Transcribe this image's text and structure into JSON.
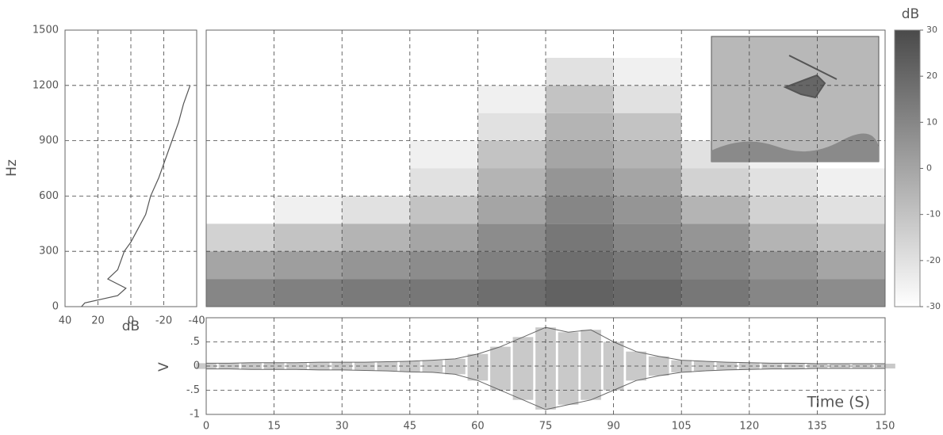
{
  "chart_data": [
    {
      "type": "line",
      "orientation": "vertical",
      "xlabel": "dB",
      "ylabel": "Hz",
      "xlim": [
        40,
        -40
      ],
      "xticks": [
        40,
        20,
        0,
        -20,
        -40
      ],
      "ylim": [
        0,
        1500
      ],
      "yticks": [
        0,
        300,
        600,
        900,
        1200,
        1500
      ],
      "grid": true,
      "color": "#555555",
      "y": [
        0,
        20,
        40,
        60,
        100,
        150,
        200,
        250,
        300,
        350,
        400,
        500,
        600,
        700,
        800,
        900,
        1000,
        1100,
        1200
      ],
      "values": [
        30,
        28,
        18,
        8,
        3,
        14,
        8,
        6,
        4,
        0,
        -3,
        -9,
        -12,
        -17,
        -21,
        -25,
        -29,
        -32,
        -36
      ]
    },
    {
      "type": "heatmap",
      "xlim": [
        0,
        150
      ],
      "xticks": [
        0,
        15,
        30,
        45,
        60,
        75,
        90,
        105,
        120,
        135,
        150
      ],
      "ylim": [
        0,
        1500
      ],
      "yticks": [
        0,
        300,
        600,
        900,
        1200,
        1500
      ],
      "grid": true,
      "xbins": [
        0,
        15,
        30,
        45,
        60,
        75,
        90,
        105,
        120,
        135,
        150
      ],
      "ybins": [
        0,
        150,
        300,
        450,
        600,
        750,
        900,
        1050,
        1200,
        1350,
        1500
      ],
      "values": [
        [
          10,
          12,
          14,
          15,
          18,
          22,
          20,
          15,
          10,
          8
        ],
        [
          0,
          2,
          5,
          8,
          12,
          18,
          15,
          10,
          5,
          0
        ],
        [
          -15,
          -10,
          -5,
          0,
          8,
          15,
          10,
          5,
          -5,
          -10
        ],
        [
          -30,
          -25,
          -20,
          -10,
          0,
          10,
          5,
          -5,
          -15,
          -20
        ],
        [
          -30,
          -30,
          -30,
          -20,
          -5,
          5,
          0,
          -15,
          -20,
          -25
        ],
        [
          -30,
          -30,
          -30,
          -25,
          -10,
          0,
          -5,
          -20,
          -25,
          -30
        ],
        [
          -30,
          -30,
          -30,
          -30,
          -20,
          -5,
          -10,
          -30,
          -30,
          -30
        ],
        [
          -30,
          -30,
          -30,
          -30,
          -25,
          -10,
          -20,
          -30,
          -30,
          -30
        ],
        [
          -30,
          -30,
          -30,
          -30,
          -30,
          -20,
          -25,
          -30,
          -30,
          -30
        ],
        [
          -30,
          -30,
          -30,
          -30,
          -30,
          -30,
          -30,
          -30,
          -30,
          -30
        ]
      ],
      "colorbar": {
        "label": "dB",
        "lim": [
          -30,
          30
        ],
        "ticks": [
          -30,
          -20,
          -10,
          0,
          10,
          20,
          30
        ],
        "colors": [
          "#ffffff",
          "#4a4a4a"
        ]
      }
    },
    {
      "type": "band",
      "ylabel": "V",
      "xlabel": "Time (S)",
      "xlim": [
        0,
        150
      ],
      "xticks": [
        0,
        15,
        30,
        45,
        60,
        75,
        90,
        105,
        120,
        135,
        150
      ],
      "ylim": [
        -1,
        1
      ],
      "yticks": [
        {
          "value": 0.5,
          "label": ".5"
        },
        0,
        {
          "value": -0.5,
          "label": "-.5"
        },
        -1
      ],
      "grid": true,
      "color": "#888888",
      "x": [
        0,
        5,
        10,
        15,
        20,
        25,
        30,
        35,
        40,
        45,
        50,
        55,
        60,
        65,
        70,
        75,
        80,
        85,
        90,
        95,
        100,
        105,
        110,
        115,
        120,
        125,
        130,
        135,
        140,
        145,
        150
      ],
      "upper": [
        0.06,
        0.06,
        0.07,
        0.07,
        0.07,
        0.08,
        0.08,
        0.08,
        0.09,
        0.1,
        0.12,
        0.15,
        0.25,
        0.4,
        0.6,
        0.8,
        0.7,
        0.75,
        0.5,
        0.3,
        0.2,
        0.12,
        0.1,
        0.08,
        0.07,
        0.06,
        0.06,
        0.05,
        0.05,
        0.05,
        0.05
      ],
      "lower": [
        -0.06,
        -0.06,
        -0.07,
        -0.07,
        -0.07,
        -0.08,
        -0.08,
        -0.09,
        -0.1,
        -0.12,
        -0.13,
        -0.17,
        -0.3,
        -0.5,
        -0.7,
        -0.9,
        -0.8,
        -0.7,
        -0.5,
        -0.3,
        -0.2,
        -0.13,
        -0.1,
        -0.08,
        -0.07,
        -0.06,
        -0.06,
        -0.05,
        -0.05,
        -0.05,
        -0.05
      ]
    }
  ]
}
